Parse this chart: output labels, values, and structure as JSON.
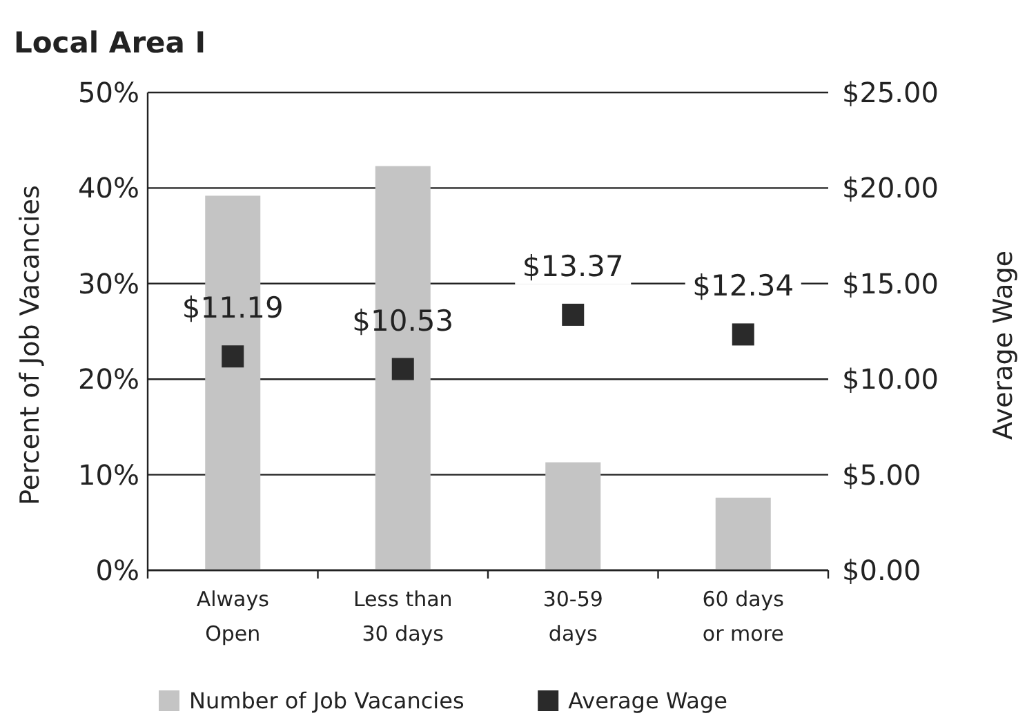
{
  "chart_data": {
    "type": "bar",
    "title": "Local Area I",
    "categories": [
      "Always\nOpen",
      "Less than\n30 days",
      "30-59\ndays",
      "60 days\nor more"
    ],
    "series": [
      {
        "name": "Number of Job Vacancies",
        "color": "#c4c4c4",
        "values": [
          39.2,
          42.3,
          11.3,
          7.6
        ]
      },
      {
        "name": "Average Wage",
        "type": "scatter",
        "axis": "y2",
        "marker": "square",
        "color": "#2a2a2a",
        "values": [
          11.19,
          10.53,
          13.37,
          12.34
        ],
        "value_labels": [
          "$11.19",
          "$10.53",
          "$13.37",
          "$12.34"
        ]
      }
    ],
    "ylabel": "Percent of Job Vacancies",
    "y2label": "Average Wage",
    "ylim": [
      0,
      50
    ],
    "yticks": [
      {
        "value": 0,
        "label": "0%"
      },
      {
        "value": 10,
        "label": "10%"
      },
      {
        "value": 20,
        "label": "20%"
      },
      {
        "value": 30,
        "label": "30%"
      },
      {
        "value": 40,
        "label": "40%"
      },
      {
        "value": 50,
        "label": "50%"
      }
    ],
    "y2lim": [
      0,
      25
    ],
    "y2ticks": [
      {
        "value": 0,
        "label": "$0.00"
      },
      {
        "value": 5,
        "label": "$5.00"
      },
      {
        "value": 10,
        "label": "$10.00"
      },
      {
        "value": 15,
        "label": "$15.00"
      },
      {
        "value": 20,
        "label": "$20.00"
      },
      {
        "value": 25,
        "label": "$25.00"
      }
    ],
    "grid": "y",
    "legend": "bottom"
  }
}
